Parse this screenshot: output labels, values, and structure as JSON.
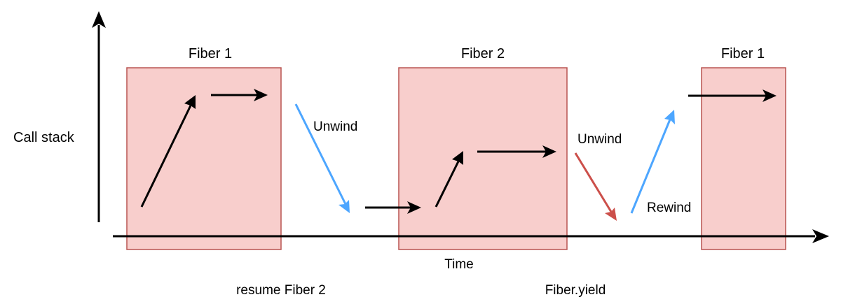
{
  "diagram": {
    "y_axis_label": "Call stack",
    "x_axis_label": "Time",
    "fiber_boxes": [
      {
        "label": "Fiber 1"
      },
      {
        "label": "Fiber 2"
      },
      {
        "label": "Fiber 1"
      }
    ],
    "transition_labels": {
      "unwind_1": "Unwind",
      "unwind_2": "Unwind",
      "rewind": "Rewind"
    },
    "bottom_labels": {
      "resume": "resume Fiber 2",
      "yield": "Fiber.yield"
    },
    "colors": {
      "box_fill": "#f8cecc",
      "box_stroke": "#b85450",
      "axis": "#000000",
      "call_arrow": "#000000",
      "unwind_blue": "#4da6ff",
      "unwind_red": "#cc4f4a",
      "rewind_blue": "#4da6ff"
    }
  }
}
